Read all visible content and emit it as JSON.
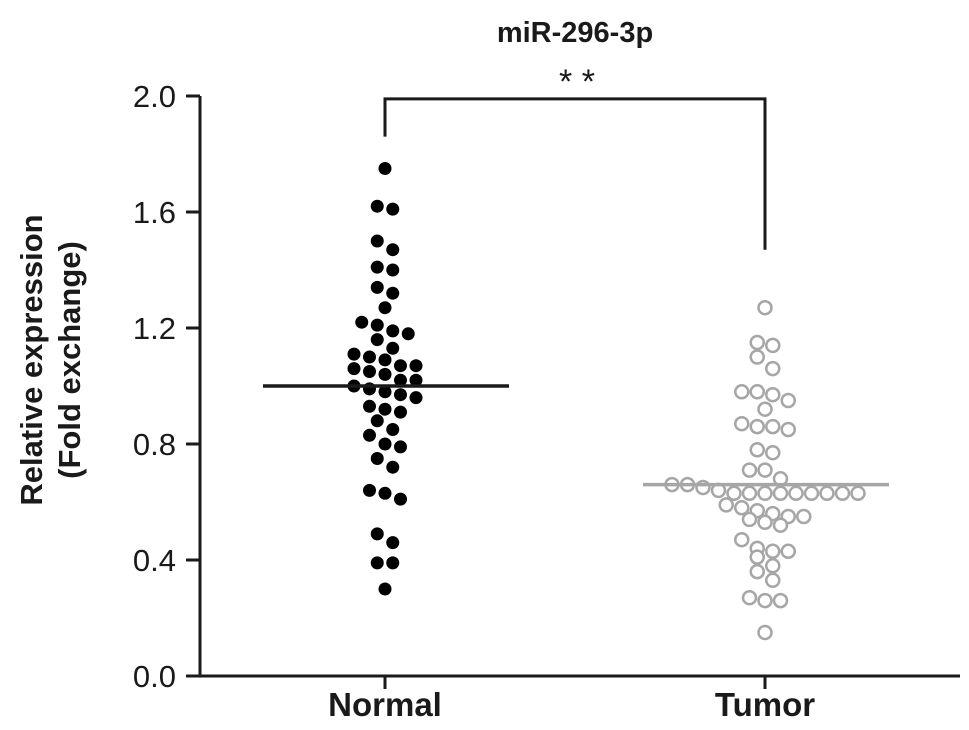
{
  "chart_data": {
    "type": "scatter",
    "title": "miR-296-3p",
    "xlabel": "",
    "ylabel": [
      "Relative expression",
      "(Fold exchange)"
    ],
    "ylim": [
      0,
      2.0
    ],
    "yticks": [
      "0.0",
      "0.4",
      "0.8",
      "1.2",
      "1.6",
      "2.0"
    ],
    "categories": [
      "Normal",
      "Tumor"
    ],
    "grid": false,
    "legend": "none",
    "significance": {
      "label": "* *",
      "between": [
        "Normal",
        "Tumor"
      ]
    },
    "series": [
      {
        "category": "Normal",
        "marker": "filled-circle",
        "color": "#000000",
        "mean": 1.0,
        "points": [
          1.75,
          1.62,
          1.61,
          1.5,
          1.47,
          1.41,
          1.4,
          1.34,
          1.32,
          1.27,
          1.22,
          1.21,
          1.19,
          1.18,
          1.16,
          1.13,
          1.11,
          1.1,
          1.09,
          1.07,
          1.07,
          1.06,
          1.05,
          1.04,
          1.02,
          1.02,
          1.0,
          0.99,
          0.98,
          0.97,
          0.96,
          0.93,
          0.92,
          0.91,
          0.88,
          0.85,
          0.83,
          0.8,
          0.79,
          0.75,
          0.72,
          0.64,
          0.63,
          0.61,
          0.49,
          0.46,
          0.39,
          0.39,
          0.3
        ]
      },
      {
        "category": "Tumor",
        "marker": "open-circle",
        "color": "#a6a6a6",
        "mean": 0.66,
        "points": [
          1.27,
          1.15,
          1.14,
          1.1,
          1.06,
          0.98,
          0.98,
          0.97,
          0.95,
          0.92,
          0.87,
          0.86,
          0.86,
          0.85,
          0.78,
          0.77,
          0.71,
          0.71,
          0.68,
          0.66,
          0.66,
          0.65,
          0.64,
          0.63,
          0.63,
          0.63,
          0.63,
          0.63,
          0.63,
          0.63,
          0.63,
          0.63,
          0.59,
          0.58,
          0.57,
          0.56,
          0.55,
          0.55,
          0.54,
          0.53,
          0.52,
          0.47,
          0.44,
          0.43,
          0.43,
          0.41,
          0.38,
          0.36,
          0.33,
          0.27,
          0.26,
          0.26,
          0.15
        ]
      }
    ]
  }
}
